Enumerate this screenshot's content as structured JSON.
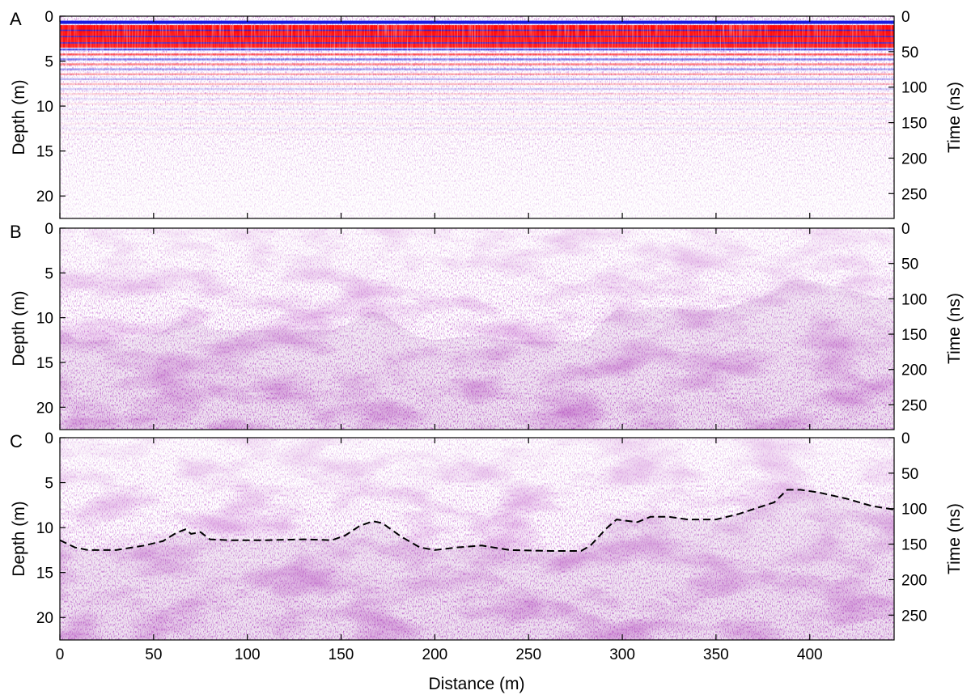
{
  "chart_data": [
    {
      "type": "heatmap",
      "panel_label": "A",
      "description_kind": "raw GPR radargram",
      "xlabel": "Distance (m)",
      "ylabel_left": "Depth (m)",
      "ylabel_right": "Time (ns)",
      "xlim": [
        0,
        445
      ],
      "depth_lim": [
        0,
        22.5
      ],
      "time_lim": [
        0,
        285
      ],
      "x_ticks": [
        "0",
        "50",
        "100",
        "150",
        "200",
        "250",
        "300",
        "350",
        "400"
      ],
      "depth_ticks": [
        "0",
        "5",
        "10",
        "15",
        "20"
      ],
      "time_ticks": [
        "0",
        "50",
        "100",
        "150",
        "200",
        "250"
      ],
      "colors": {
        "positive": "#ff0000",
        "negative": "#1515e0",
        "mixed": "#7a1a8a"
      },
      "reflector": [
        [
          0,
          null
        ]
      ],
      "features": {
        "banding_top_depth": 0.5,
        "strong_band_depth": [
          1.0,
          3.5
        ],
        "banding_fade_depth": 13
      }
    },
    {
      "type": "heatmap",
      "panel_label": "B",
      "description_kind": "processed GPR radargram",
      "xlabel": "Distance (m)",
      "ylabel_left": "Depth (m)",
      "ylabel_right": "Time (ns)",
      "xlim": [
        0,
        445
      ],
      "depth_lim": [
        0,
        22.5
      ],
      "time_lim": [
        0,
        285
      ],
      "x_ticks": [
        "0",
        "50",
        "100",
        "150",
        "200",
        "250",
        "300",
        "350",
        "400"
      ],
      "depth_ticks": [
        "0",
        "5",
        "10",
        "15",
        "20"
      ],
      "time_ticks": [
        "0",
        "50",
        "100",
        "150",
        "200",
        "250"
      ],
      "colors": {
        "mixed": "#7a1a8a"
      }
    },
    {
      "type": "heatmap",
      "panel_label": "C",
      "description_kind": "processed GPR radargram with interpreted reflector",
      "xlabel": "Distance (m)",
      "ylabel_left": "Depth (m)",
      "ylabel_right": "Time (ns)",
      "xlim": [
        0,
        445
      ],
      "depth_lim": [
        0,
        22.5
      ],
      "time_lim": [
        0,
        285
      ],
      "x_ticks": [
        "0",
        "50",
        "100",
        "150",
        "200",
        "250",
        "300",
        "350",
        "400"
      ],
      "depth_ticks": [
        "0",
        "5",
        "10",
        "15",
        "20"
      ],
      "time_ticks": [
        "0",
        "50",
        "100",
        "150",
        "200",
        "250"
      ],
      "colors": {
        "mixed": "#7a1a8a",
        "reflector_line": "#000000"
      },
      "reflector": {
        "distance_m": [
          0,
          8,
          15,
          30,
          45,
          55,
          62,
          67,
          70,
          75,
          80,
          90,
          110,
          130,
          145,
          152,
          160,
          167,
          172,
          182,
          192,
          200,
          212,
          225,
          240,
          262,
          278,
          283,
          292,
          297,
          308,
          315,
          325,
          335,
          350,
          362,
          372,
          381,
          388,
          395,
          405,
          420,
          433,
          445
        ],
        "depth_m": [
          11.4,
          12.2,
          12.5,
          12.5,
          12.0,
          11.5,
          10.6,
          10.2,
          10.7,
          10.5,
          11.3,
          11.4,
          11.4,
          11.3,
          11.4,
          10.9,
          9.8,
          9.3,
          9.5,
          11.0,
          12.2,
          12.5,
          12.2,
          12.0,
          12.5,
          12.6,
          12.6,
          12.0,
          10.0,
          9.1,
          9.4,
          8.8,
          8.8,
          9.1,
          9.1,
          8.5,
          7.8,
          7.2,
          5.8,
          5.8,
          6.1,
          6.8,
          7.6,
          8.0
        ]
      }
    }
  ]
}
